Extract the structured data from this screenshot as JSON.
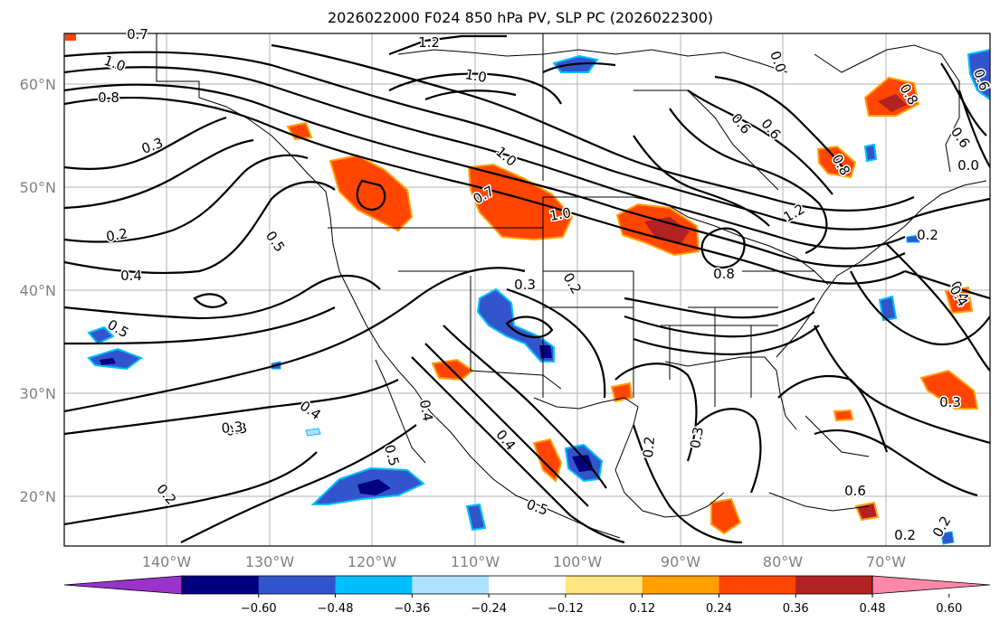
{
  "title": "2026022000 F024 850 hPa PV, SLP PC (2026022300)",
  "lat_labels": [
    "60°N",
    "50°N",
    "40°N",
    "30°N",
    "20°N"
  ],
  "lon_labels": [
    "140°W",
    "130°W",
    "120°W",
    "110°W",
    "100°W",
    "90°W",
    "80°W",
    "70°W"
  ],
  "colorbar": {
    "ticks": [
      "−0.60",
      "−0.48",
      "−0.36",
      "−0.24",
      "−0.12",
      "0.12",
      "0.24",
      "0.36",
      "0.48",
      "0.60"
    ],
    "colors": [
      "#9933cc",
      "#000080",
      "#3355cc",
      "#00bfff",
      "#aee0ff",
      "#ffffff",
      "#ffe680",
      "#ffa000",
      "#ff4500",
      "#b22222",
      "#ff88aa"
    ]
  },
  "contour_labels": [
    "0.7",
    "1.0",
    "1.2",
    "1.0",
    "0.8",
    "0.3",
    "0.2",
    "0.4",
    "0.5",
    "0.5",
    "0.4",
    "0.3",
    "0.2",
    "1.0",
    "0.7",
    "1.0",
    "0.3",
    "0.2",
    "0.6",
    "0.0",
    "0.8",
    "1.2",
    "0.8",
    "0.6",
    "0.4",
    "0.8",
    "0.6",
    "0.3",
    "0.3",
    "0.2",
    "0.5",
    "0.5",
    "0.2",
    "0.4",
    "0.6",
    "0.2",
    "0.2",
    "0.0",
    "0.3",
    "0.6",
    "0.4",
    "0.4"
  ]
}
